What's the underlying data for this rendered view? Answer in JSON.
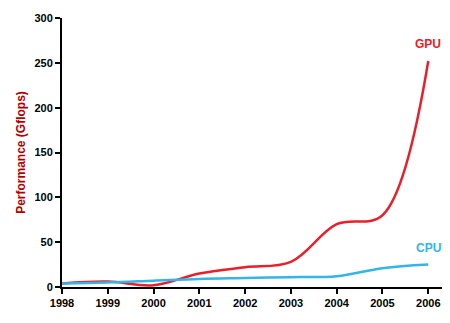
{
  "chart_data": {
    "type": "line",
    "y_label": "Performance (Gflops)",
    "x": [
      1998,
      1999,
      2000,
      2001,
      2002,
      2003,
      2004,
      2005,
      2006
    ],
    "series": [
      {
        "name": "GPU",
        "color": "#e8202a",
        "values": [
          4,
          6,
          2,
          15,
          22,
          28,
          70,
          80,
          252
        ]
      },
      {
        "name": "CPU",
        "color": "#33b5e5",
        "values": [
          4,
          5,
          7,
          9,
          10,
          11,
          12,
          21,
          25
        ]
      }
    ],
    "xlim": [
      1998,
      2006.3
    ],
    "xticks": [
      1998,
      1999,
      2000,
      2001,
      2002,
      2003,
      2004,
      2005,
      2006
    ],
    "ylim": [
      0,
      300
    ],
    "yticks": [
      0,
      50,
      100,
      150,
      200,
      250,
      300
    ],
    "grid": false
  }
}
